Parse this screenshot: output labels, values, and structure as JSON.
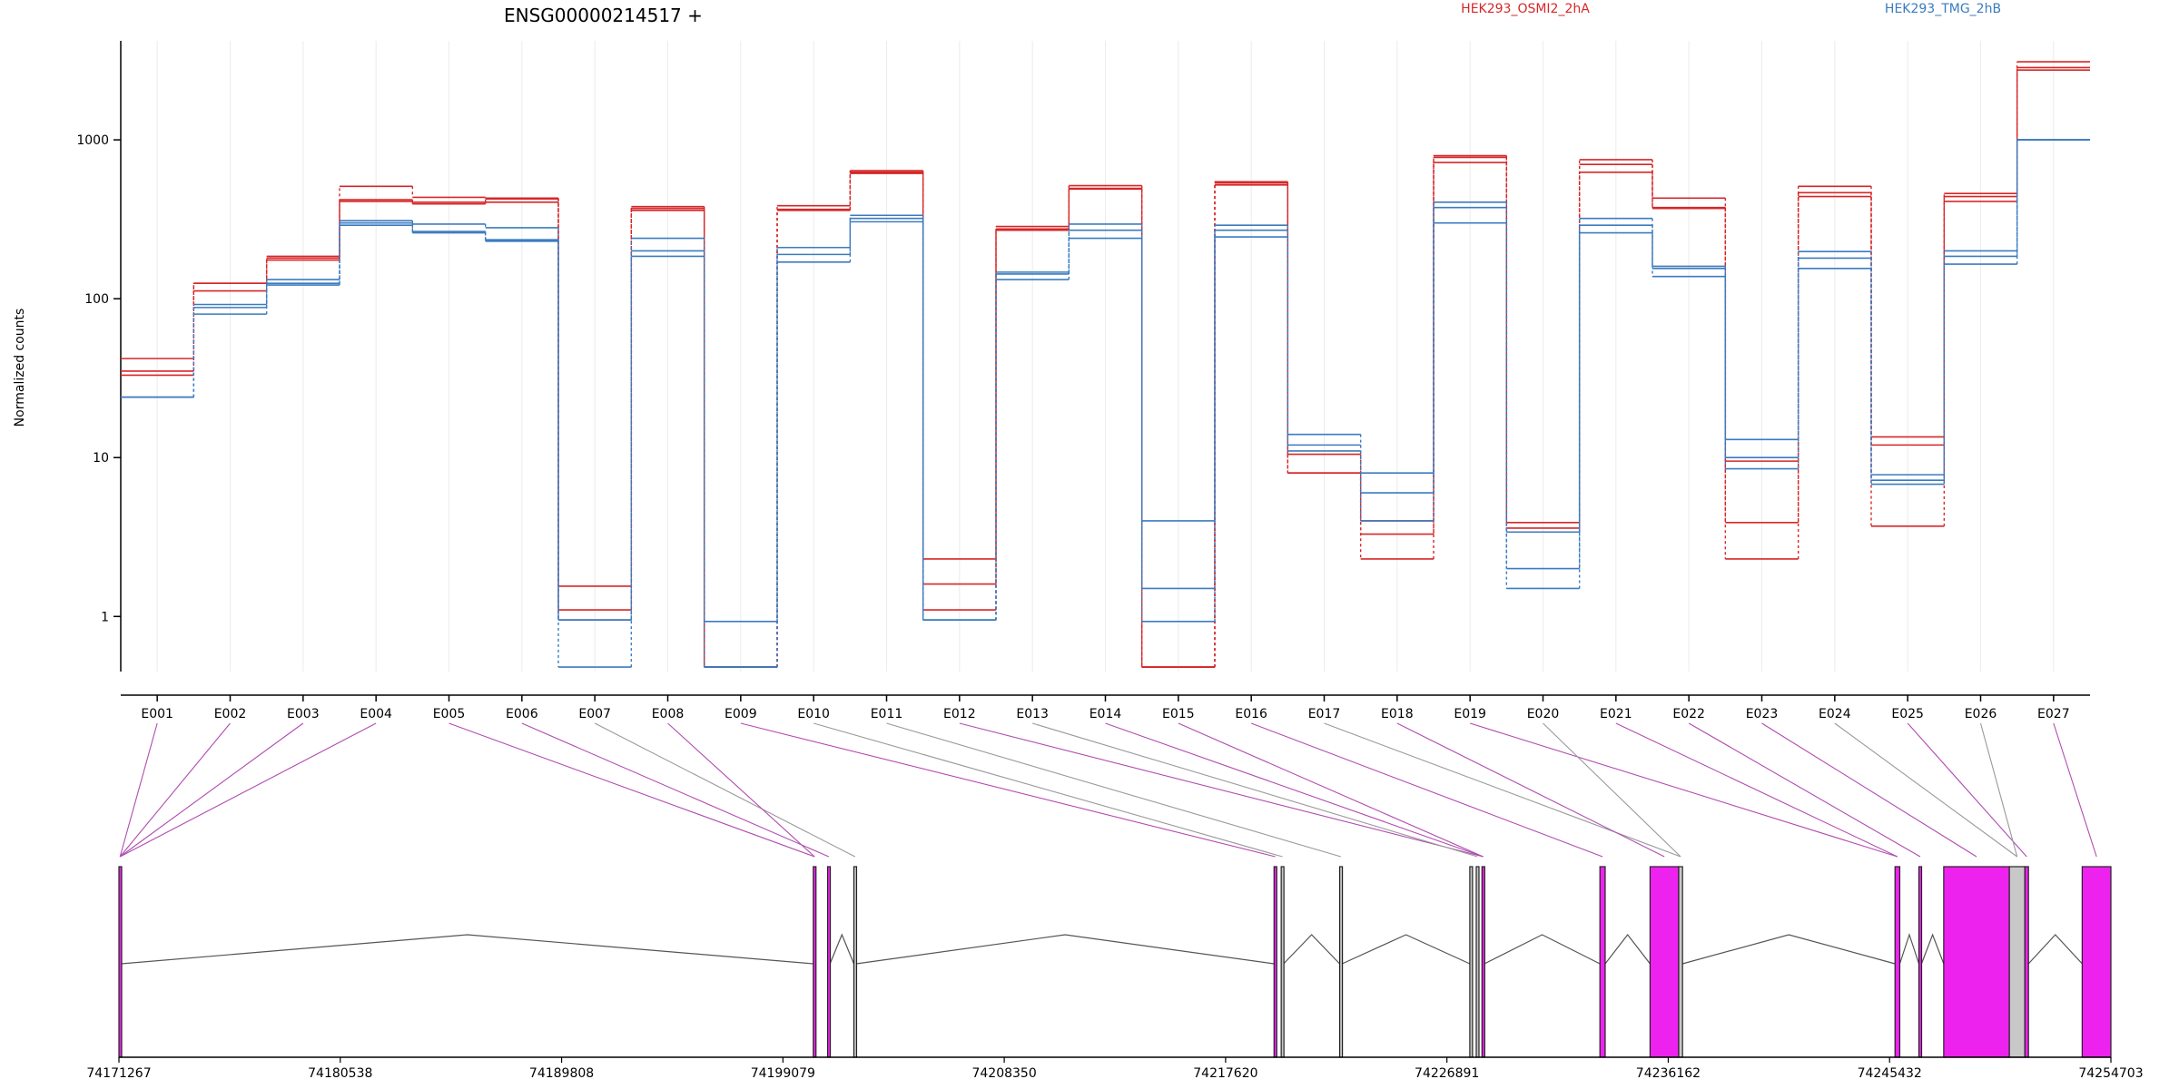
{
  "chart_data": {
    "type": "line",
    "title": "ENSG00000214517 +",
    "ylabel": "Normalized counts",
    "yscale": "log",
    "ylim": [
      0.45,
      4200
    ],
    "yticks": [
      1,
      10,
      100,
      1000
    ],
    "grid": "vertical",
    "legend_position": "top",
    "colors": {
      "HEK293_OSMI2_2hA": "#d62728",
      "HEK293_TMG_2hB": "#3b7bbf",
      "exon_bin": "#ee22ee",
      "excluded_bin": "#c8c8c8",
      "map_line_exon": "#b04cb0",
      "map_line_excluded": "#999999"
    },
    "categories": [
      "E001",
      "E002",
      "E003",
      "E004",
      "E005",
      "E006",
      "E007",
      "E008",
      "E009",
      "E010",
      "E011",
      "E012",
      "E013",
      "E014",
      "E015",
      "E016",
      "E017",
      "E018",
      "E019",
      "E020",
      "E021",
      "E022",
      "E023",
      "E024",
      "E025",
      "E026",
      "E027"
    ],
    "series": [
      {
        "name": "HEK293_OSMI2_2hA",
        "replicate": 1,
        "values": [
          42,
          125,
          185,
          510,
          435,
          430,
          1.55,
          380,
          0.48,
          385,
          640,
          2.3,
          285,
          515,
          0.48,
          545,
          8,
          2.3,
          795,
          3.9,
          750,
          430,
          2.3,
          510,
          13.5,
          460,
          3100
        ]
      },
      {
        "name": "HEK293_OSMI2_2hA",
        "replicate": 2,
        "values": [
          35,
          125,
          175,
          420,
          405,
          425,
          1.1,
          360,
          0.48,
          360,
          625,
          1.6,
          275,
          495,
          0.48,
          535,
          8,
          3.3,
          775,
          3.6,
          700,
          375,
          3.9,
          465,
          12,
          440,
          2850
        ]
      },
      {
        "name": "HEK293_OSMI2_2hA",
        "replicate": 3,
        "values": [
          33,
          112,
          180,
          410,
          395,
          405,
          0.95,
          370,
          0.48,
          365,
          615,
          1.1,
          270,
          490,
          0.48,
          520,
          10.5,
          4,
          720,
          3.4,
          625,
          370,
          9.5,
          440,
          3.7,
          410,
          2750
        ]
      },
      {
        "name": "HEK293_TMG_2hB",
        "replicate": 1,
        "values": [
          24,
          92,
          132,
          310,
          295,
          280,
          0.95,
          240,
          0.93,
          210,
          335,
          0.95,
          147,
          295,
          4,
          290,
          14,
          8,
          405,
          3.4,
          320,
          160,
          13,
          198,
          7.8,
          200,
          1000
        ]
      },
      {
        "name": "HEK293_TMG_2hB",
        "replicate": 2,
        "values": [
          24,
          88,
          125,
          300,
          265,
          235,
          0.95,
          200,
          0.48,
          190,
          320,
          0.95,
          143,
          270,
          1.5,
          270,
          12,
          6,
          375,
          2,
          290,
          155,
          10,
          180,
          7.2,
          185,
          1000
        ]
      },
      {
        "name": "HEK293_TMG_2hB",
        "replicate": 3,
        "values": [
          24,
          80,
          122,
          290,
          260,
          230,
          0.48,
          185,
          0.48,
          170,
          305,
          0.95,
          132,
          240,
          0.93,
          245,
          11,
          4,
          300,
          1.5,
          260,
          138,
          8.5,
          155,
          6.8,
          165,
          1000
        ]
      }
    ],
    "genomic_axis": {
      "start": 74171267,
      "end": 74254703,
      "tick_labels": [
        "74171267",
        "74180538",
        "74189808",
        "74199079",
        "74208350",
        "74217620",
        "74226891",
        "74236162",
        "74245432",
        "74254703"
      ]
    },
    "bins": [
      {
        "start": 74171267,
        "end": 74171360,
        "status": "exon"
      },
      {
        "start": 74200350,
        "end": 74200460,
        "status": "exon"
      },
      {
        "start": 74200950,
        "end": 74201050,
        "status": "exon"
      },
      {
        "start": 74202050,
        "end": 74202150,
        "status": "excluded"
      },
      {
        "start": 74219650,
        "end": 74219750,
        "status": "exon"
      },
      {
        "start": 74219950,
        "end": 74220050,
        "status": "excluded"
      },
      {
        "start": 74222400,
        "end": 74222500,
        "status": "excluded"
      },
      {
        "start": 74227850,
        "end": 74227950,
        "status": "excluded"
      },
      {
        "start": 74228120,
        "end": 74228220,
        "status": "excluded"
      },
      {
        "start": 74228360,
        "end": 74228460,
        "status": "exon"
      },
      {
        "start": 74233300,
        "end": 74233520,
        "status": "exon"
      },
      {
        "start": 74235400,
        "end": 74236600,
        "status": "exon"
      },
      {
        "start": 74236600,
        "end": 74236760,
        "status": "excluded"
      },
      {
        "start": 74245660,
        "end": 74245860,
        "status": "exon"
      },
      {
        "start": 74246660,
        "end": 74246770,
        "status": "exon"
      },
      {
        "start": 74247700,
        "end": 74250450,
        "status": "exon"
      },
      {
        "start": 74250450,
        "end": 74251100,
        "status": "excluded"
      },
      {
        "start": 74251100,
        "end": 74251250,
        "status": "exon"
      },
      {
        "start": 74253500,
        "end": 74254703,
        "status": "exon"
      }
    ],
    "exon_to_bin": [
      0,
      0,
      0,
      0,
      1,
      2,
      3,
      1,
      4,
      5,
      6,
      9,
      8,
      9,
      9,
      10,
      12,
      11,
      13,
      12,
      13,
      14,
      15,
      16,
      17,
      16,
      18
    ],
    "junctions": [
      [
        0,
        1
      ],
      [
        2,
        3
      ],
      [
        3,
        4
      ],
      [
        5,
        6
      ],
      [
        6,
        7
      ],
      [
        9,
        10
      ],
      [
        10,
        11
      ],
      [
        12,
        13
      ],
      [
        13,
        14
      ],
      [
        14,
        15
      ],
      [
        17,
        18
      ]
    ]
  }
}
